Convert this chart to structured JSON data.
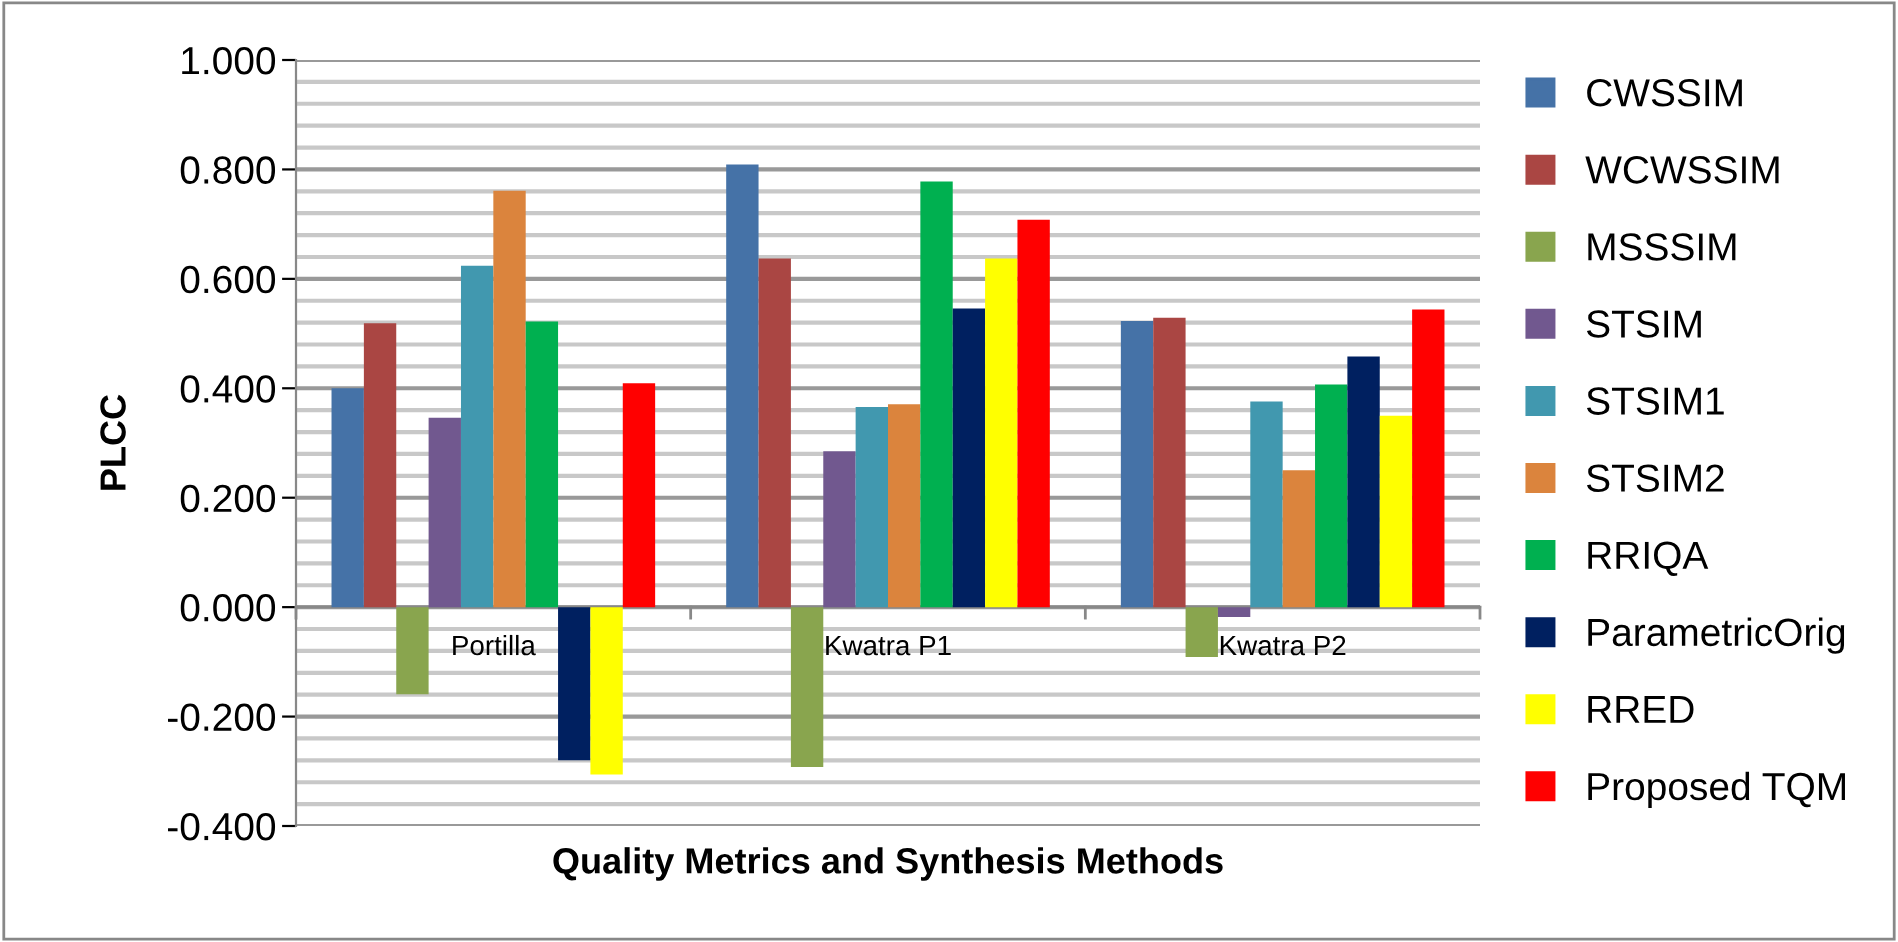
{
  "chart_data": {
    "type": "bar",
    "xlabel": "Quality Metrics and Synthesis Methods",
    "ylabel": "PLCC",
    "categories": [
      "Portilla",
      "Kwatra P1",
      "Kwatra P2"
    ],
    "series": [
      {
        "name": "CWSSIM",
        "color": "#4572a7",
        "values": [
          0.4,
          0.809,
          0.523
        ]
      },
      {
        "name": "WCWSSIM",
        "color": "#aa4643",
        "values": [
          0.519,
          0.637,
          0.529
        ]
      },
      {
        "name": "MSSSIM",
        "color": "#89a54e",
        "values": [
          -0.159,
          -0.292,
          -0.091
        ]
      },
      {
        "name": "STSIM",
        "color": "#71588f",
        "values": [
          0.346,
          0.285,
          -0.018
        ]
      },
      {
        "name": "STSIM1",
        "color": "#4198af",
        "values": [
          0.624,
          0.366,
          0.376
        ]
      },
      {
        "name": "STSIM2",
        "color": "#db843d",
        "values": [
          0.761,
          0.371,
          0.25
        ]
      },
      {
        "name": "RRIQA",
        "color": "#00b050",
        "values": [
          0.522,
          0.778,
          0.407
        ]
      },
      {
        "name": "ParametricOrig",
        "color": "#002060",
        "values": [
          -0.28,
          0.546,
          0.458
        ]
      },
      {
        "name": "RRED",
        "color": "#ffff00",
        "values": [
          -0.306,
          0.637,
          0.35
        ]
      },
      {
        "name": "Proposed TQM",
        "color": "#ff0000",
        "values": [
          0.409,
          0.708,
          0.544
        ]
      }
    ],
    "ylim": [
      -0.4,
      1.0
    ],
    "yticks": [
      {
        "value": -0.4,
        "label": "-0.400"
      },
      {
        "value": -0.36,
        "label": null
      },
      {
        "value": -0.32,
        "label": null
      },
      {
        "value": -0.28,
        "label": null
      },
      {
        "value": -0.24,
        "label": null
      },
      {
        "value": -0.2,
        "label": "-0.200"
      },
      {
        "value": -0.16,
        "label": null
      },
      {
        "value": -0.12,
        "label": null
      },
      {
        "value": -0.08,
        "label": null
      },
      {
        "value": -0.04,
        "label": null
      },
      {
        "value": 0.0,
        "label": "0.000"
      },
      {
        "value": 0.04,
        "label": null
      },
      {
        "value": 0.08,
        "label": null
      },
      {
        "value": 0.12,
        "label": null
      },
      {
        "value": 0.16,
        "label": null
      },
      {
        "value": 0.2,
        "label": "0.200"
      },
      {
        "value": 0.24,
        "label": null
      },
      {
        "value": 0.28,
        "label": null
      },
      {
        "value": 0.32,
        "label": null
      },
      {
        "value": 0.36,
        "label": null
      },
      {
        "value": 0.4,
        "label": "0.400"
      },
      {
        "value": 0.44,
        "label": null
      },
      {
        "value": 0.48,
        "label": null
      },
      {
        "value": 0.52,
        "label": null
      },
      {
        "value": 0.56,
        "label": null
      },
      {
        "value": 0.6,
        "label": "0.600"
      },
      {
        "value": 0.64,
        "label": null
      },
      {
        "value": 0.68,
        "label": null
      },
      {
        "value": 0.72,
        "label": null
      },
      {
        "value": 0.76,
        "label": null
      },
      {
        "value": 0.8,
        "label": "0.800"
      },
      {
        "value": 0.84,
        "label": null
      },
      {
        "value": 0.88,
        "label": null
      },
      {
        "value": 0.92,
        "label": null
      },
      {
        "value": 0.96,
        "label": null
      },
      {
        "value": 1.0,
        "label": "1.000"
      }
    ],
    "grid": "y",
    "legend": "right"
  }
}
